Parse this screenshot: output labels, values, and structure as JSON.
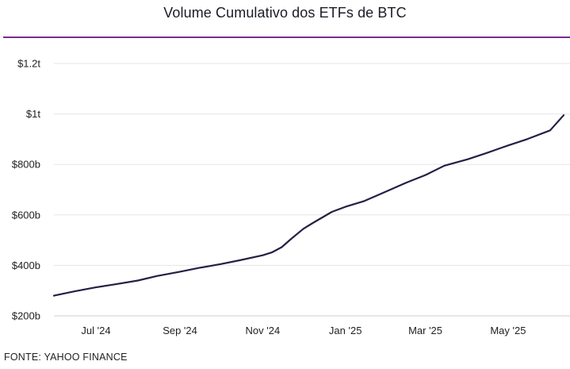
{
  "chart_data": {
    "type": "line",
    "title": "Volume Cumulativo dos ETFs de BTC",
    "xlabel": "",
    "ylabel": "",
    "source": "FONTE: YAHOO FINANCE",
    "colors": {
      "line": "#242045",
      "rule": "#7a2c8c",
      "grid": "#e6e6e6"
    },
    "grid": true,
    "ylim": [
      200,
      1200
    ],
    "y_ticks": [
      {
        "value": 200,
        "label": "$200b"
      },
      {
        "value": 400,
        "label": "$400b"
      },
      {
        "value": 600,
        "label": "$600b"
      },
      {
        "value": 800,
        "label": "$800b"
      },
      {
        "value": 1000,
        "label": "$1t"
      },
      {
        "value": 1200,
        "label": "$1.2t"
      }
    ],
    "xlim": [
      "2024-05-31",
      "2025-06-11"
    ],
    "x_ticks": [
      {
        "value": "2024-07-01",
        "label": "Jul '24"
      },
      {
        "value": "2024-09-01",
        "label": "Sep '24"
      },
      {
        "value": "2024-11-01",
        "label": "Nov '24"
      },
      {
        "value": "2025-01-01",
        "label": "Jan '25"
      },
      {
        "value": "2025-03-01",
        "label": "Mar '25"
      },
      {
        "value": "2025-05-01",
        "label": "May '25"
      }
    ],
    "series": [
      {
        "x": [
          "2024-05-31",
          "2024-06-15",
          "2024-07-01",
          "2024-07-15",
          "2024-08-01",
          "2024-08-15",
          "2024-09-01",
          "2024-09-15",
          "2024-10-01",
          "2024-10-15",
          "2024-11-01",
          "2024-11-08",
          "2024-11-15",
          "2024-11-22",
          "2024-12-01",
          "2024-12-08",
          "2024-12-15",
          "2024-12-22",
          "2025-01-01",
          "2025-01-15",
          "2025-02-01",
          "2025-02-15",
          "2025-03-01",
          "2025-03-15",
          "2025-04-01",
          "2025-04-15",
          "2025-05-01",
          "2025-05-15",
          "2025-06-01",
          "2025-06-11"
        ],
        "values": [
          280,
          297,
          313,
          325,
          340,
          358,
          375,
          390,
          405,
          420,
          440,
          452,
          472,
          505,
          545,
          568,
          590,
          612,
          632,
          655,
          695,
          728,
          758,
          795,
          820,
          845,
          875,
          900,
          935,
          995
        ]
      }
    ]
  }
}
